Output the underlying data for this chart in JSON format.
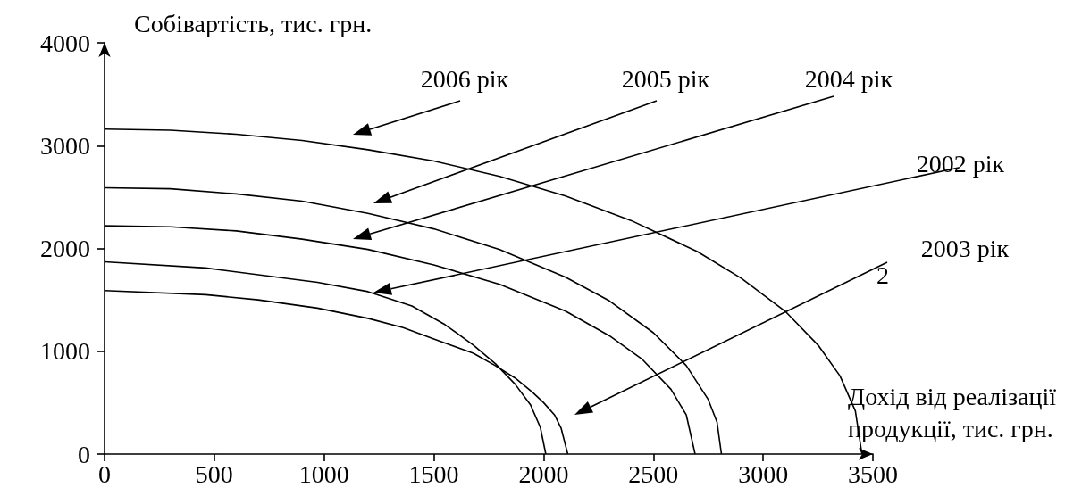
{
  "chart_data": {
    "type": "line",
    "xlabel": "Дохід від реалізації продукції, тис. грн.",
    "ylabel": "Собівартість, тис. грн.",
    "xlim": [
      0,
      3500
    ],
    "ylim": [
      0,
      4000
    ],
    "xticks": [
      0,
      500,
      1000,
      1500,
      2000,
      2500,
      3000,
      3500
    ],
    "yticks": [
      0,
      1000,
      2000,
      3000,
      4000
    ],
    "grid": false,
    "marker": "none",
    "line_style": "solid",
    "series": [
      {
        "color": "#000000",
        "x": [
          0,
          300,
          600,
          900,
          1200,
          1500,
          1800,
          2100,
          2400,
          2700,
          2900,
          3100,
          3250,
          3350,
          3420,
          3450
        ],
        "values": [
          3160,
          3150,
          3110,
          3050,
          2960,
          2850,
          2700,
          2510,
          2270,
          1970,
          1710,
          1390,
          1060,
          760,
          420,
          0
        ]
      },
      {
        "color": "#000000",
        "x": [
          0,
          300,
          600,
          900,
          1200,
          1500,
          1800,
          2100,
          2300,
          2500,
          2650,
          2750,
          2790,
          2810
        ],
        "values": [
          2590,
          2580,
          2530,
          2460,
          2340,
          2190,
          1990,
          1720,
          1490,
          1180,
          860,
          530,
          310,
          0
        ]
      },
      {
        "color": "#000000",
        "x": [
          0,
          300,
          600,
          900,
          1200,
          1500,
          1800,
          2100,
          2300,
          2450,
          2580,
          2650,
          2690
        ],
        "values": [
          2220,
          2210,
          2170,
          2090,
          1990,
          1840,
          1650,
          1390,
          1150,
          920,
          630,
          380,
          0
        ]
      },
      {
        "color": "#000000",
        "x": [
          0,
          460,
          970,
          1200,
          1400,
          1550,
          1680,
          1780,
          1870,
          1940,
          1985,
          2010
        ],
        "values": [
          1870,
          1810,
          1670,
          1580,
          1440,
          1260,
          1060,
          880,
          680,
          480,
          260,
          0
        ]
      },
      {
        "color": "#000000",
        "x": [
          0,
          460,
          700,
          970,
          1200,
          1360,
          1500,
          1680,
          1780,
          1870,
          1950,
          2000,
          2050,
          2080,
          2110
        ],
        "values": [
          1590,
          1550,
          1500,
          1420,
          1320,
          1230,
          1120,
          980,
          860,
          740,
          600,
          500,
          380,
          250,
          0
        ]
      }
    ],
    "annotations": [
      "2006 рік",
      "2005 рік",
      "2004 рік",
      "2002 рік",
      "2003 рік",
      "2"
    ]
  }
}
